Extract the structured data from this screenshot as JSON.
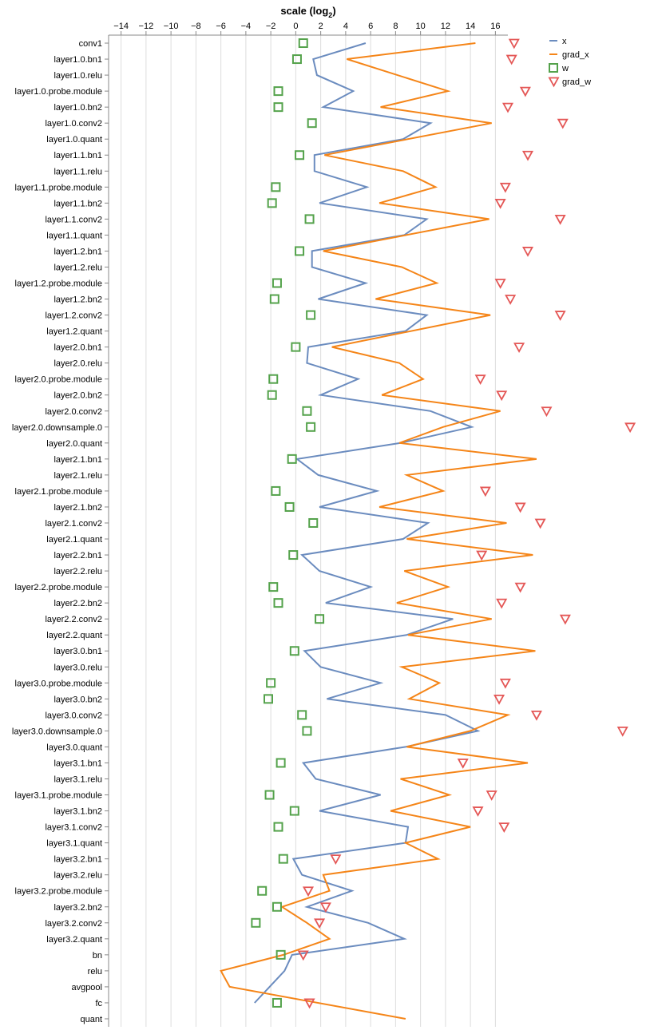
{
  "chart_data": {
    "type": "line",
    "title": "",
    "xlabel": "scale (log",
    "xlabel_sub": "2",
    "xlabel_close": ")",
    "ylabel": "",
    "x_axis_position": "top",
    "xlim": [
      -15,
      17
    ],
    "x_ticks": [
      -14,
      -12,
      -10,
      -8,
      -6,
      -4,
      -2,
      0,
      2,
      4,
      6,
      8,
      10,
      12,
      14,
      16
    ],
    "x_tick_labels": [
      "−14",
      "−12",
      "−10",
      "−8",
      "−6",
      "−4",
      "−2",
      "0",
      "2",
      "4",
      "6",
      "8",
      "10",
      "12",
      "14",
      "16"
    ],
    "grid": true,
    "legend_position": "top-right",
    "categories": [
      "conv1",
      "layer1.0.bn1",
      "layer1.0.relu",
      "layer1.0.probe.module",
      "layer1.0.bn2",
      "layer1.0.conv2",
      "layer1.0.quant",
      "layer1.1.bn1",
      "layer1.1.relu",
      "layer1.1.probe.module",
      "layer1.1.bn2",
      "layer1.1.conv2",
      "layer1.1.quant",
      "layer1.2.bn1",
      "layer1.2.relu",
      "layer1.2.probe.module",
      "layer1.2.bn2",
      "layer1.2.conv2",
      "layer1.2.quant",
      "layer2.0.bn1",
      "layer2.0.relu",
      "layer2.0.probe.module",
      "layer2.0.bn2",
      "layer2.0.conv2",
      "layer2.0.downsample.0",
      "layer2.0.quant",
      "layer2.1.bn1",
      "layer2.1.relu",
      "layer2.1.probe.module",
      "layer2.1.bn2",
      "layer2.1.conv2",
      "layer2.1.quant",
      "layer2.2.bn1",
      "layer2.2.relu",
      "layer2.2.probe.module",
      "layer2.2.bn2",
      "layer2.2.conv2",
      "layer2.2.quant",
      "layer3.0.bn1",
      "layer3.0.relu",
      "layer3.0.probe.module",
      "layer3.0.bn2",
      "layer3.0.conv2",
      "layer3.0.downsample.0",
      "layer3.0.quant",
      "layer3.1.bn1",
      "layer3.1.relu",
      "layer3.1.probe.module",
      "layer3.1.bn2",
      "layer3.1.conv2",
      "layer3.1.quant",
      "layer3.2.bn1",
      "layer3.2.relu",
      "layer3.2.probe.module",
      "layer3.2.bn2",
      "layer3.2.conv2",
      "layer3.2.quant",
      "bn",
      "relu",
      "avgpool",
      "fc",
      "quant"
    ],
    "series": [
      {
        "name": "x",
        "mark": "line",
        "color": "#6b8cbf",
        "values": [
          5.6,
          1.4,
          1.7,
          4.6,
          2.2,
          10.8,
          8.6,
          1.5,
          1.5,
          5.7,
          1.9,
          10.5,
          8.7,
          1.3,
          1.3,
          5.6,
          1.8,
          10.5,
          8.8,
          1.0,
          0.9,
          5.0,
          2.0,
          10.8,
          14.1,
          8.4,
          0.1,
          1.8,
          6.5,
          1.9,
          10.6,
          8.6,
          0.5,
          1.9,
          6.0,
          2.4,
          12.6,
          8.9,
          0.7,
          2.0,
          6.8,
          2.5,
          12.0,
          14.6,
          8.8,
          0.6,
          1.6,
          6.8,
          1.9,
          9.0,
          8.8,
          -0.2,
          0.5,
          4.5,
          0.9,
          5.8,
          8.7,
          -0.3,
          -0.9,
          -2.1,
          -3.3,
          null
        ]
      },
      {
        "name": "grad_x",
        "mark": "line",
        "color": "#f58518",
        "values": [
          14.4,
          4.1,
          null,
          12.2,
          6.8,
          15.7,
          null,
          2.3,
          8.6,
          11.2,
          6.7,
          15.5,
          null,
          2.2,
          8.5,
          11.3,
          6.4,
          15.6,
          null,
          2.9,
          8.3,
          10.2,
          6.9,
          16.4,
          11.8,
          8.3,
          19.3,
          8.9,
          11.8,
          6.7,
          16.9,
          8.9,
          19.0,
          8.7,
          12.2,
          8.1,
          15.7,
          9.0,
          19.2,
          8.5,
          11.5,
          9.1,
          17.0,
          14.0,
          8.9,
          18.6,
          8.4,
          12.3,
          7.6,
          14.0,
          8.8,
          11.4,
          2.2,
          2.7,
          -1.1,
          0.9,
          2.7,
          -1.0,
          -6.0,
          -5.3,
          null,
          8.8
        ]
      },
      {
        "name": "w",
        "mark": "square",
        "color": "#54a24b",
        "values": [
          0.6,
          0.1,
          null,
          -1.4,
          -1.4,
          1.3,
          null,
          0.3,
          null,
          -1.6,
          -1.9,
          1.1,
          null,
          0.3,
          null,
          -1.5,
          -1.7,
          1.2,
          null,
          0.0,
          null,
          -1.8,
          -1.9,
          0.9,
          1.2,
          null,
          -0.3,
          null,
          -1.6,
          -0.5,
          1.4,
          null,
          -0.2,
          null,
          -1.8,
          -1.4,
          1.9,
          null,
          -0.1,
          null,
          -2.0,
          -2.2,
          0.5,
          0.9,
          null,
          -1.2,
          null,
          -2.1,
          -0.1,
          -1.4,
          null,
          -1.0,
          null,
          -2.7,
          -1.5,
          -3.2,
          null,
          -1.2,
          null,
          null,
          -1.5,
          null
        ]
      },
      {
        "name": "grad_w",
        "mark": "triangle-down",
        "color": "#e45756",
        "values": [
          17.5,
          17.3,
          null,
          18.4,
          17.0,
          21.4,
          null,
          18.6,
          null,
          16.8,
          16.4,
          21.2,
          null,
          18.6,
          null,
          16.4,
          17.2,
          21.2,
          null,
          17.9,
          null,
          14.8,
          16.5,
          20.1,
          26.8,
          null,
          null,
          null,
          15.2,
          18.0,
          19.6,
          null,
          14.9,
          null,
          18.0,
          16.5,
          21.6,
          null,
          null,
          null,
          16.8,
          16.3,
          19.3,
          26.2,
          null,
          13.4,
          null,
          15.7,
          14.6,
          16.7,
          null,
          3.2,
          null,
          1.0,
          2.4,
          1.9,
          null,
          0.6,
          null,
          null,
          1.1,
          null
        ]
      }
    ]
  }
}
